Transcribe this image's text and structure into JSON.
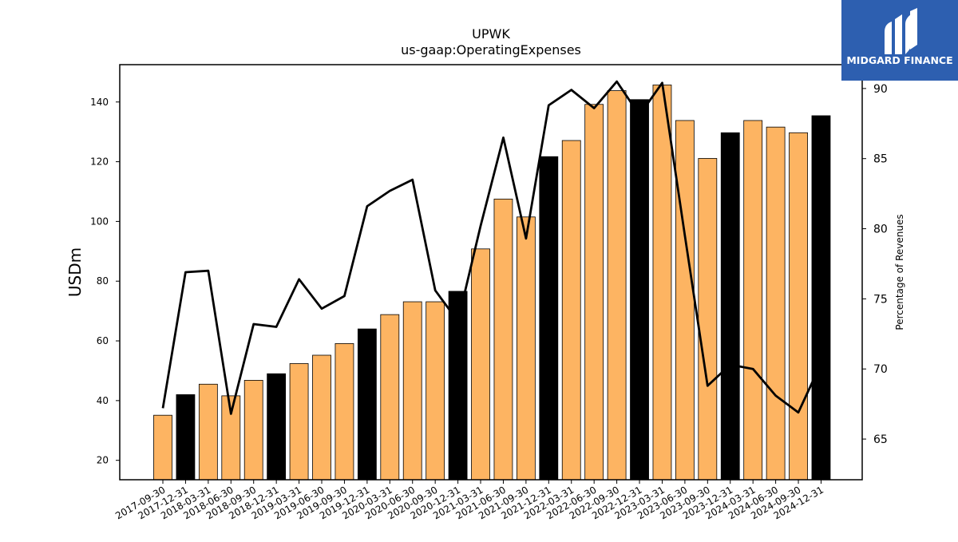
{
  "logo": {
    "text": "MIDGARD FINANCE",
    "bg_color": "#2d5fb0"
  },
  "chart_data": {
    "type": "bar",
    "title": "UPWK",
    "subtitle": "us-gaap:OperatingExpenses",
    "ylabel": "USDm",
    "y2label": "Percentage of Revenues",
    "ylim": [
      13.5,
      152.5
    ],
    "y2lim": [
      62.1,
      91.7
    ],
    "yticks": [
      20,
      40,
      60,
      80,
      100,
      120,
      140
    ],
    "y2ticks": [
      65,
      70,
      75,
      80,
      85,
      90
    ],
    "categories": [
      "2017-09-30",
      "2017-12-31",
      "2018-03-31",
      "2018-06-30",
      "2018-09-30",
      "2018-12-31",
      "2019-03-31",
      "2019-06-30",
      "2019-09-30",
      "2019-12-31",
      "2020-03-31",
      "2020-06-30",
      "2020-09-30",
      "2020-12-31",
      "2021-03-31",
      "2021-06-30",
      "2021-09-30",
      "2021-12-31",
      "2022-03-31",
      "2022-06-30",
      "2022-09-30",
      "2022-12-31",
      "2023-03-31",
      "2023-06-30",
      "2023-09-30",
      "2023-12-31",
      "2024-03-31",
      "2024-06-30",
      "2024-09-30",
      "2024-12-31"
    ],
    "series": [
      {
        "type": "bar",
        "values": [
          35.1,
          42.0,
          45.5,
          41.6,
          46.8,
          49.0,
          52.4,
          55.2,
          59.1,
          64.0,
          68.8,
          73.1,
          73.1,
          76.6,
          90.8,
          107.5,
          101.5,
          121.7,
          127.1,
          139.2,
          143.8,
          140.8,
          145.7,
          133.8,
          121.1,
          129.7,
          133.8,
          131.6,
          129.7,
          135.4
        ],
        "colors": [
          "#fdb462",
          "#000000",
          "#fdb462",
          "#fdb462",
          "#fdb462",
          "#000000",
          "#fdb462",
          "#fdb462",
          "#fdb462",
          "#000000",
          "#fdb462",
          "#fdb462",
          "#fdb462",
          "#000000",
          "#fdb462",
          "#fdb462",
          "#fdb462",
          "#000000",
          "#fdb462",
          "#fdb462",
          "#fdb462",
          "#000000",
          "#fdb462",
          "#fdb462",
          "#fdb462",
          "#000000",
          "#fdb462",
          "#fdb462",
          "#fdb462",
          "#000000"
        ]
      },
      {
        "type": "line",
        "axis": "right",
        "color": "#000000",
        "values": [
          67.2,
          76.9,
          77.0,
          66.8,
          73.2,
          73.0,
          76.4,
          74.3,
          75.2,
          81.6,
          82.7,
          83.5,
          75.6,
          73.4,
          80.2,
          86.5,
          79.3,
          88.8,
          89.9,
          88.6,
          90.5,
          88.1,
          90.4,
          79.5,
          68.8,
          70.3,
          70.0,
          68.1,
          66.9,
          70.4
        ]
      }
    ],
    "grid": false,
    "legend": "none"
  }
}
